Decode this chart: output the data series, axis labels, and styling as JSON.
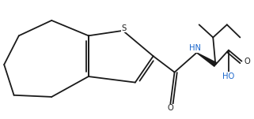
{
  "bg_color": "#ffffff",
  "line_color": "#1a1a1a",
  "lw": 1.3,
  "fs_label": 7.2,
  "N_color": "#1a66cc",
  "HO_color": "#1a66cc",
  "fig_width": 3.21,
  "fig_height": 1.51,
  "dpi": 100,
  "xlim": [
    0,
    10.0
  ],
  "ylim": [
    0,
    4.7
  ]
}
